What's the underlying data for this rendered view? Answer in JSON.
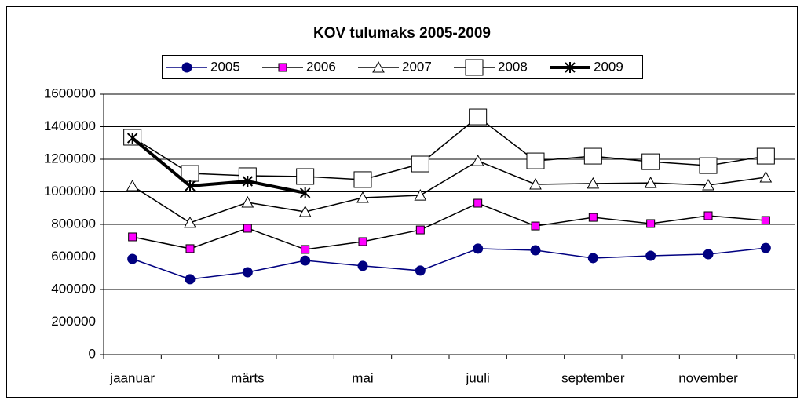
{
  "chart_data": {
    "type": "line",
    "title": "KOV tulumaks 2005-2009",
    "categories": [
      "jaanuar",
      null,
      "märts",
      null,
      "mai",
      null,
      "juuli",
      null,
      "september",
      null,
      "november",
      null
    ],
    "ylim": [
      0,
      1600000
    ],
    "yticks": [
      0,
      200000,
      400000,
      600000,
      800000,
      1000000,
      1200000,
      1400000,
      1600000
    ],
    "grid": true,
    "legend": "top",
    "series": [
      {
        "name": "2005",
        "color": "#000080",
        "marker": "circle",
        "marker_fill": "#000080",
        "values": [
          588000,
          463000,
          506000,
          578000,
          545000,
          516000,
          651000,
          641000,
          593000,
          607000,
          617000,
          655000
        ]
      },
      {
        "name": "2006",
        "color": "#000000",
        "marker": "square",
        "marker_fill": "#ff00ff",
        "values": [
          723000,
          651000,
          776000,
          646000,
          694000,
          766000,
          930000,
          790000,
          843000,
          805000,
          853000,
          824000
        ]
      },
      {
        "name": "2007",
        "color": "#000000",
        "marker": "triangle",
        "marker_fill": "#ffffff",
        "values": [
          1036000,
          810000,
          935000,
          877000,
          964000,
          978000,
          1190000,
          1046000,
          1051000,
          1055000,
          1041000,
          1089000
        ]
      },
      {
        "name": "2008",
        "color": "#000000",
        "marker": "bigsquare",
        "marker_fill": "#ffffff",
        "values": [
          1335000,
          1113000,
          1099000,
          1094000,
          1075000,
          1171000,
          1460000,
          1190000,
          1219000,
          1185000,
          1161000,
          1219000
        ]
      },
      {
        "name": "2009",
        "color": "#000000",
        "marker": "star",
        "marker_fill": "#ffffff",
        "values": [
          1330000,
          1036000,
          1065000,
          993000,
          null,
          null,
          null,
          null,
          null,
          null,
          null,
          null
        ]
      }
    ]
  }
}
